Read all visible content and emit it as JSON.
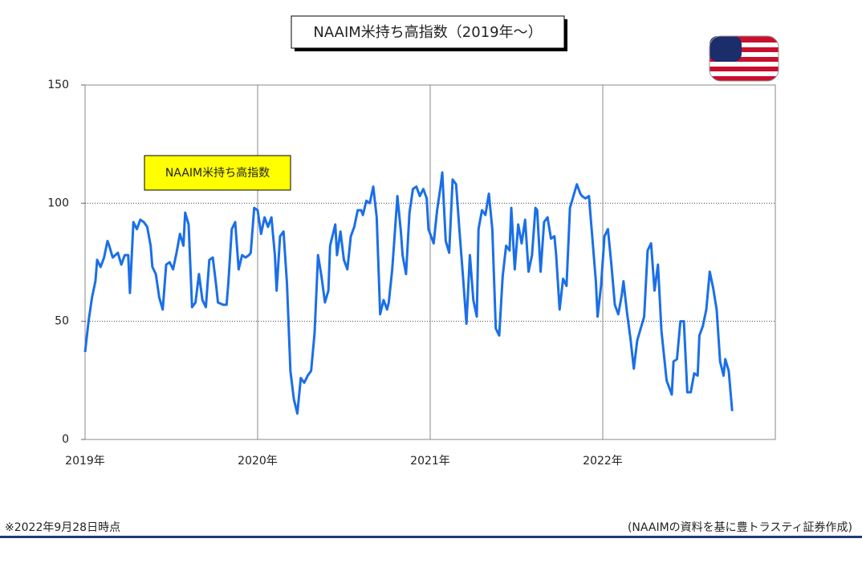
{
  "chart_data": {
    "type": "line",
    "title": "NAAIM米持ち高指数（2019年～）",
    "note": "※2022年9月28日時点",
    "source": "(NAAIMの資料を基に豊トラスティ証券作成)",
    "xlim": [
      2019,
      2023
    ],
    "xticks": [
      {
        "value": 2019,
        "label": "2019年"
      },
      {
        "value": 2020,
        "label": "2020年"
      },
      {
        "value": 2021,
        "label": "2021年"
      },
      {
        "value": 2022,
        "label": "2022年"
      }
    ],
    "ylim": [
      0,
      150
    ],
    "yticks": [
      0,
      50,
      100,
      150
    ],
    "grid": true,
    "series": [
      {
        "name": "NAAIM米持ち高指数",
        "color": "#1a6fe8",
        "x": [
          2019.0,
          2019.02,
          2019.04,
          2019.06,
          2019.07,
          2019.09,
          2019.11,
          2019.13,
          2019.14,
          2019.16,
          2019.19,
          2019.21,
          2019.23,
          2019.25,
          2019.26,
          2019.28,
          2019.3,
          2019.32,
          2019.34,
          2019.36,
          2019.38,
          2019.39,
          2019.41,
          2019.43,
          2019.45,
          2019.47,
          2019.49,
          2019.51,
          2019.53,
          2019.55,
          2019.57,
          2019.58,
          2019.6,
          2019.62,
          2019.64,
          2019.66,
          2019.68,
          2019.7,
          2019.72,
          2019.74,
          2019.76,
          2019.77,
          2019.8,
          2019.82,
          2019.83,
          2019.85,
          2019.87,
          2019.89,
          2019.91,
          2019.93,
          2019.95,
          2019.96,
          2019.98,
          2020.0,
          2020.02,
          2020.04,
          2020.06,
          2020.08,
          2020.1,
          2020.11,
          2020.13,
          2020.15,
          2020.17,
          2020.19,
          2020.21,
          2020.23,
          2020.25,
          2020.27,
          2020.29,
          2020.31,
          2020.33,
          2020.35,
          2020.37,
          2020.39,
          2020.41,
          2020.42,
          2020.45,
          2020.46,
          2020.48,
          2020.5,
          2020.52,
          2020.54,
          2020.56,
          2020.58,
          2020.6,
          2020.61,
          2020.63,
          2020.65,
          2020.67,
          2020.69,
          2020.71,
          2020.73,
          2020.75,
          2020.76,
          2020.78,
          2020.81,
          2020.83,
          2020.84,
          2020.86,
          2020.88,
          2020.9,
          2020.92,
          2020.94,
          2020.96,
          2020.98,
          2020.99,
          2021.02,
          2021.04,
          2021.06,
          2021.07,
          2021.09,
          2021.11,
          2021.13,
          2021.15,
          2021.17,
          2021.19,
          2021.21,
          2021.23,
          2021.25,
          2021.27,
          2021.28,
          2021.3,
          2021.32,
          2021.34,
          2021.36,
          2021.38,
          2021.4,
          2021.42,
          2021.44,
          2021.46,
          2021.47,
          2021.49,
          2021.51,
          2021.53,
          2021.55,
          2021.57,
          2021.59,
          2021.61,
          2021.62,
          2021.64,
          2021.66,
          2021.68,
          2021.7,
          2021.72,
          2021.73,
          2021.75,
          2021.77,
          2021.79,
          2021.81,
          2021.83,
          2021.85,
          2021.87,
          2021.88,
          2021.9,
          2021.92,
          2021.94,
          2021.96,
          2021.97,
          2021.99,
          2022.01,
          2022.03,
          2022.05,
          2022.07,
          2022.09,
          2022.11,
          2022.12,
          2022.14,
          2022.16,
          2022.18,
          2022.2,
          2022.22,
          2022.24,
          2022.26,
          2022.28,
          2022.3,
          2022.32,
          2022.34,
          2022.36,
          2022.37,
          2022.4,
          2022.41,
          2022.43,
          2022.45,
          2022.47,
          2022.49,
          2022.51,
          2022.53,
          2022.55,
          2022.56,
          2022.58,
          2022.6,
          2022.62,
          2022.64,
          2022.66,
          2022.68,
          2022.7,
          2022.71,
          2022.73,
          2022.75
        ],
        "values": [
          37,
          50,
          60,
          67,
          76,
          73,
          77,
          84,
          82,
          77,
          79,
          74,
          78,
          78,
          62,
          92,
          89,
          93,
          92,
          90,
          82,
          73,
          70,
          60,
          55,
          74,
          75,
          72,
          79,
          87,
          82,
          96,
          91,
          56,
          58,
          70,
          59,
          56,
          76,
          77,
          65,
          58,
          57,
          57,
          66,
          89,
          92,
          72,
          78,
          77,
          78,
          79,
          98,
          97,
          87,
          94,
          90,
          94,
          78,
          63,
          86,
          88,
          66,
          29,
          17,
          11,
          26,
          24,
          27,
          29,
          45,
          78,
          69,
          58,
          63,
          82,
          91,
          78,
          88,
          76,
          72,
          86,
          90,
          97,
          97,
          95,
          101,
          100,
          107,
          94,
          53,
          59,
          55,
          58,
          72,
          103,
          88,
          78,
          70,
          96,
          106,
          107,
          103,
          106,
          102,
          89,
          83,
          97,
          107,
          113,
          84,
          79,
          110,
          108,
          88,
          69,
          49,
          78,
          59,
          52,
          89,
          97,
          95,
          104,
          89,
          47,
          44,
          69,
          82,
          80,
          98,
          72,
          91,
          83,
          93,
          71,
          78,
          98,
          97,
          71,
          92,
          94,
          85,
          86,
          78,
          55,
          68,
          65,
          98,
          103,
          108,
          104,
          103,
          102,
          103,
          85,
          67,
          52,
          65,
          86,
          89,
          74,
          57,
          53,
          61,
          67,
          54,
          43,
          30,
          42,
          47,
          52,
          80,
          83,
          63,
          74,
          46,
          32,
          25,
          19,
          33,
          34,
          50,
          50,
          20,
          20,
          28,
          27,
          44,
          48,
          55,
          71,
          64,
          55,
          33,
          27,
          34,
          29,
          12
        ]
      }
    ]
  }
}
